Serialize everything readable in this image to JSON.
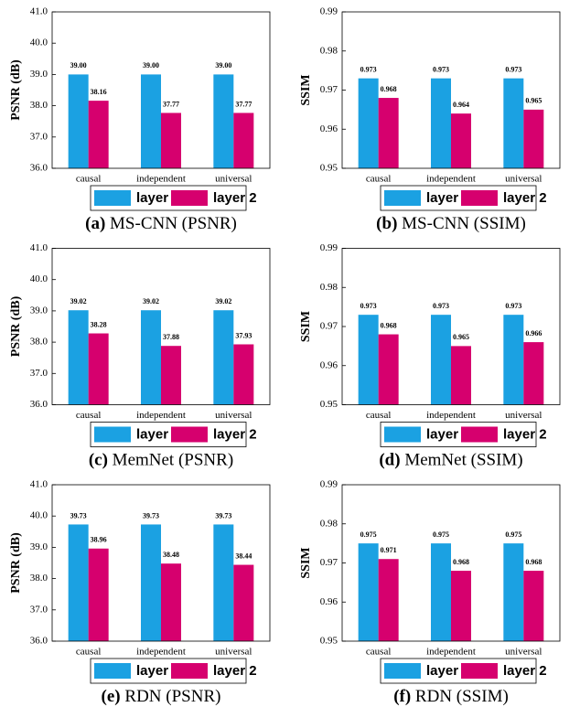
{
  "chart_data": [
    {
      "type": "bar",
      "label": "(a)",
      "title": "MS-CNN (PSNR)",
      "ylabel": "PSNR (dB)",
      "categories": [
        "causal",
        "independent",
        "universal"
      ],
      "series": [
        {
          "name": "layer 1",
          "color": "#1ba1e2",
          "values": [
            39.0,
            39.0,
            39.0
          ],
          "value_labels": [
            "39.00",
            "39.00",
            "39.00"
          ]
        },
        {
          "name": "layer 2",
          "color": "#d6006e",
          "values": [
            38.16,
            37.77,
            37.77
          ]
        }
      ],
      "ylim": [
        36,
        41
      ],
      "yticks": [
        {
          "value": 36,
          "label": "36.0"
        },
        {
          "value": 37,
          "label": "37.0"
        },
        {
          "value": 38,
          "label": "38.0"
        },
        {
          "value": 39,
          "label": "39.0"
        },
        {
          "value": 40,
          "label": "40.0"
        },
        {
          "value": 41,
          "label": "41.0"
        }
      ]
    },
    {
      "type": "bar",
      "label": "(b)",
      "title": "MS-CNN (SSIM)",
      "ylabel": "SSIM",
      "categories": [
        "causal",
        "independent",
        "universal"
      ],
      "series": [
        {
          "name": "layer 1",
          "color": "#1ba1e2",
          "values": [
            0.973,
            0.973,
            0.973
          ]
        },
        {
          "name": "layer 2",
          "color": "#d6006e",
          "values": [
            0.968,
            0.964,
            0.965
          ]
        }
      ],
      "ylim": [
        0.95,
        0.99
      ],
      "yticks": [
        0.95,
        0.96,
        0.97,
        0.98,
        0.99
      ]
    },
    {
      "type": "bar",
      "label": "(c)",
      "title": "MemNet (PSNR)",
      "ylabel": "PSNR (dB)",
      "categories": [
        "causal",
        "independent",
        "universal"
      ],
      "series": [
        {
          "name": "layer 1",
          "color": "#1ba1e2",
          "values": [
            39.02,
            39.02,
            39.02
          ]
        },
        {
          "name": "layer 2",
          "color": "#d6006e",
          "values": [
            38.28,
            37.88,
            37.93
          ]
        }
      ],
      "ylim": [
        36,
        41
      ],
      "yticks": [
        {
          "value": 36,
          "label": "36.0"
        },
        {
          "value": 37,
          "label": "37.0"
        },
        {
          "value": 38,
          "label": "38.0"
        },
        {
          "value": 39,
          "label": "39.0"
        },
        {
          "value": 40,
          "label": "40.0"
        },
        {
          "value": 41,
          "label": "41.0"
        }
      ]
    },
    {
      "type": "bar",
      "label": "(d)",
      "title": "MemNet (SSIM)",
      "ylabel": "SSIM",
      "categories": [
        "causal",
        "independent",
        "universal"
      ],
      "series": [
        {
          "name": "layer 1",
          "color": "#1ba1e2",
          "values": [
            0.973,
            0.973,
            0.973
          ]
        },
        {
          "name": "layer 2",
          "color": "#d6006e",
          "values": [
            0.968,
            0.965,
            0.966
          ]
        }
      ],
      "ylim": [
        0.95,
        0.99
      ],
      "yticks": [
        0.95,
        0.96,
        0.97,
        0.98,
        0.99
      ]
    },
    {
      "type": "bar",
      "label": "(e)",
      "title": "RDN (PSNR)",
      "ylabel": "PSNR (dB)",
      "categories": [
        "causal",
        "independent",
        "universal"
      ],
      "series": [
        {
          "name": "layer 1",
          "color": "#1ba1e2",
          "values": [
            39.73,
            39.73,
            39.73
          ]
        },
        {
          "name": "layer 2",
          "color": "#d6006e",
          "values": [
            38.96,
            38.48,
            38.44
          ]
        }
      ],
      "ylim": [
        36,
        41
      ],
      "yticks": [
        {
          "value": 36,
          "label": "36.0"
        },
        {
          "value": 37,
          "label": "37.0"
        },
        {
          "value": 38,
          "label": "38.0"
        },
        {
          "value": 39,
          "label": "39.0"
        },
        {
          "value": 40,
          "label": "40.0"
        },
        {
          "value": 41,
          "label": "41.0"
        }
      ]
    },
    {
      "type": "bar",
      "label": "(f)",
      "title": "RDN (SSIM)",
      "ylabel": "SSIM",
      "categories": [
        "causal",
        "independent",
        "universal"
      ],
      "series": [
        {
          "name": "layer 1",
          "color": "#1ba1e2",
          "values": [
            0.975,
            0.975,
            0.975
          ]
        },
        {
          "name": "layer 2",
          "color": "#d6006e",
          "values": [
            0.971,
            0.968,
            0.968
          ]
        }
      ],
      "ylim": [
        0.95,
        0.99
      ],
      "yticks": [
        0.95,
        0.96,
        0.97,
        0.98,
        0.99
      ]
    }
  ]
}
